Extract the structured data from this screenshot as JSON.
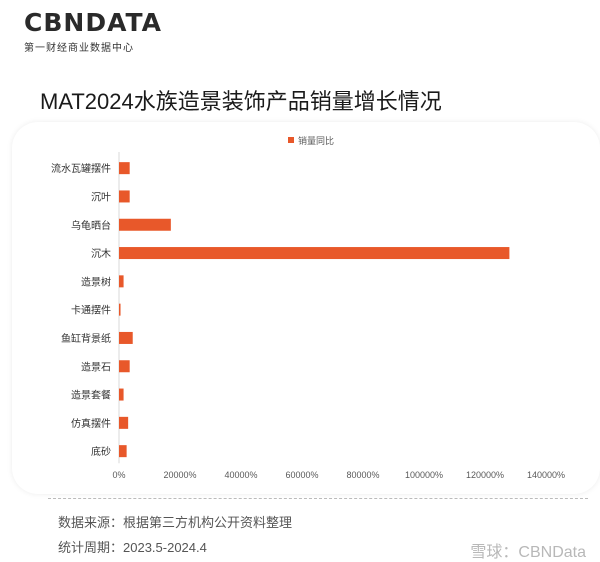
{
  "header": {
    "logo_text": "CBNDATA",
    "logo_subtitle": "第一财经商业数据中心"
  },
  "chart_data": {
    "type": "bar",
    "orientation": "horizontal",
    "title": "MAT2024水族造景装饰产品销量增长情况",
    "series": [
      {
        "name": "销量同比",
        "color": "#E8582A",
        "values": [
          3500,
          3500,
          17000,
          128000,
          1500,
          500,
          4500,
          3500,
          1500,
          3000,
          2500
        ]
      }
    ],
    "categories": [
      "流水瓦罐摆件",
      "沉叶",
      "乌龟晒台",
      "沉木",
      "造景树",
      "卡通摆件",
      "鱼缸背景纸",
      "造景石",
      "造景套餐",
      "仿真摆件",
      "底砂"
    ],
    "xlim": [
      0,
      140000
    ],
    "x_ticks": [
      "0%",
      "20000%",
      "40000%",
      "60000%",
      "80000%",
      "100000%",
      "120000%",
      "140000%"
    ],
    "legend_position": "top",
    "grid": false
  },
  "footer": {
    "source": "数据来源：根据第三方机构公开资料整理",
    "period": "统计周期：2023.5-2024.4",
    "watermark": "雪球：CBNData"
  }
}
